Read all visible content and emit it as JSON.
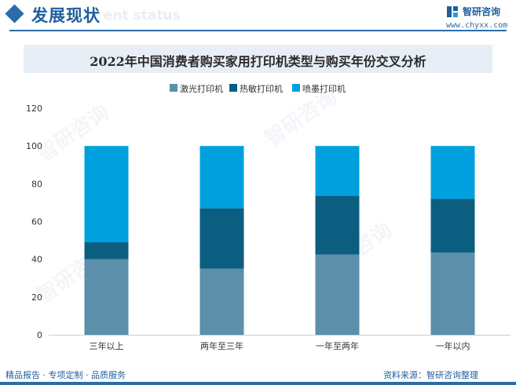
{
  "header": {
    "title": "发展现状",
    "subtitle": "ent status",
    "brand_name": "智研咨询",
    "brand_url": "www.chyxx.com"
  },
  "watermark": "智研咨询",
  "colors": {
    "laser": "#5b8faa",
    "thermal": "#0b5e80",
    "inkjet": "#00a0de",
    "accent": "#2b6ca8"
  },
  "chart_data": {
    "type": "bar",
    "stacked": true,
    "title": "2022年中国消费者购买家用打印机类型与购买年份交叉分析",
    "categories": [
      "三年以上",
      "两年至三年",
      "一年至两年",
      "一年以内"
    ],
    "series": [
      {
        "name": "激光打印机",
        "color": "#5b8faa",
        "values": [
          40,
          35,
          42.5,
          43.5
        ]
      },
      {
        "name": "热敏打印机",
        "color": "#0b5e80",
        "values": [
          9,
          32,
          31,
          28.5
        ]
      },
      {
        "name": "喷墨打印机",
        "color": "#00a0de",
        "values": [
          51,
          33,
          26.5,
          28
        ]
      }
    ],
    "ylim": [
      0,
      120
    ],
    "yticks": [
      "0",
      "20",
      "40",
      "60",
      "80",
      "100",
      "120"
    ],
    "grid": false,
    "legend_position": "top"
  },
  "footer": {
    "left": "精品报告 · 专项定制 · 品质服务",
    "right": "资料来源：智研咨询整理"
  }
}
